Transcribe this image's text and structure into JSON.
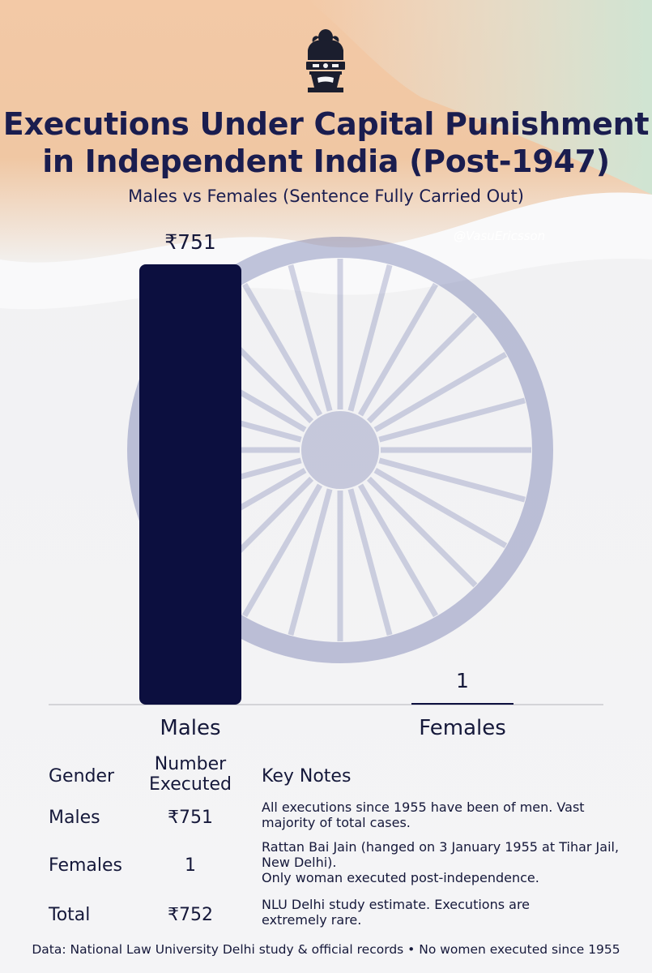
{
  "header": {
    "title_line1": "Executions Under Capital Punishment",
    "title_line2": "in Independent India (Post-1947)",
    "subtitle": "Males vs Females (Sentence Fully Carried Out)",
    "watermark": "@VasuEricsson"
  },
  "colors": {
    "bar": "#0c0f3f",
    "title": "#1a1d4f",
    "saffron": "#f0a060",
    "green": "#3f9a5a",
    "chakra": "#2e3a8a"
  },
  "icons": {
    "emblem": "ashoka-lion-capital-icon",
    "background": "indian-flag-chakra"
  },
  "chart_data": {
    "type": "bar",
    "categories": [
      "Males",
      "Females"
    ],
    "values": [
      751,
      1
    ],
    "value_labels": [
      "₹751",
      "1"
    ],
    "title": "Executions Under Capital Punishment in Independent India (Post-1947)",
    "subtitle": "Males vs Females (Sentence Fully Carried Out)",
    "ylim": [
      0,
      751
    ],
    "grid": false,
    "legend": "none"
  },
  "table": {
    "headers": {
      "gender": "Gender",
      "number_line1": "Number",
      "number_line2": "Executed",
      "notes": "Key Notes"
    },
    "rows": [
      {
        "gender": "Males",
        "number": "₹751",
        "notes": [
          "All executions since 1955 have been of men. Vast",
          "majority of total cases."
        ]
      },
      {
        "gender": "Females",
        "number": "1",
        "notes": [
          "Rattan Bai Jain (hanged on 3 January 1955 at Tihar Jail,",
          "New Delhi).",
          "Only woman executed  post-independence."
        ]
      },
      {
        "gender": "Total",
        "number": "₹752",
        "notes": [
          "NLU Delhi study estimate. Executions are",
          "extremely rare."
        ]
      }
    ]
  },
  "footer": "Data: National Law University Delhi study & official records • No women executed since 1955"
}
